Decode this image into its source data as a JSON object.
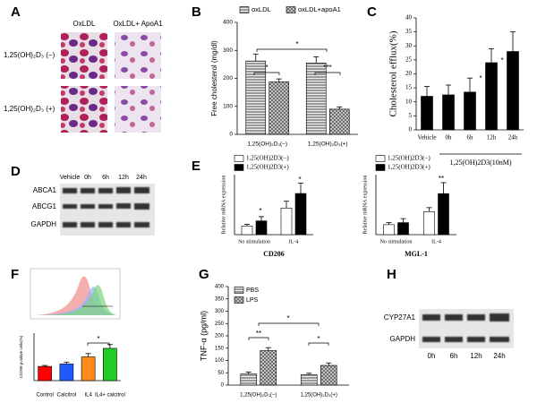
{
  "panel_labels": [
    "A",
    "B",
    "C",
    "D",
    "E",
    "F",
    "G",
    "H"
  ],
  "panel_a": {
    "columns": [
      "OxLDL",
      "OxLDL+ ApoA1"
    ],
    "rows": [
      "1,25(OH)₂D₃ (−)",
      "1,25(OH)₂D₃ (+)"
    ]
  },
  "panel_d": {
    "lanes": [
      "Vehicle",
      "0h",
      "6h",
      "12h",
      "24h"
    ],
    "bands": [
      "ABCA1",
      "ABCG1",
      "GAPDH"
    ]
  },
  "panel_h": {
    "lanes": [
      "0h",
      "6h",
      "12h",
      "24h"
    ],
    "bands": [
      "CYP27A1",
      "GAPDH"
    ]
  },
  "chart_data": [
    {
      "type": "bar",
      "ylabel": "Free cholesterol (mg/dl)",
      "categories": [
        "1,25(OH)₂D₃(−)",
        "1,25(OH)₂D₃(+)"
      ],
      "series": [
        {
          "name": "oxLDL",
          "color": "#b0b0b0",
          "hatch": "horizontal",
          "values": [
            262,
            255
          ],
          "errors": [
            25,
            22
          ]
        },
        {
          "name": "oxLDL+apoA1",
          "color": "#b0b0b0",
          "hatch": "cross",
          "values": [
            188,
            90
          ],
          "errors": [
            10,
            8
          ]
        }
      ],
      "ylim": [
        0,
        400
      ],
      "yticks": [
        0,
        100,
        200,
        300,
        400
      ],
      "annotations": [
        "*",
        "***",
        "*"
      ]
    },
    {
      "type": "bar",
      "ylabel": "Cholesterol efflux(%)",
      "xlabel": "1,25(OH)2D3(10nM)",
      "categories": [
        "Vehicle",
        "0h",
        "6h",
        "12h",
        "24h"
      ],
      "values": [
        12,
        12.5,
        13.5,
        24,
        28
      ],
      "errors": [
        3.5,
        3.5,
        5,
        5,
        7
      ],
      "color": "#000000",
      "ylim": [
        0,
        40
      ],
      "yticks": [
        0,
        5,
        10,
        15,
        20,
        25,
        30,
        35,
        40
      ],
      "annotations": [
        "*",
        "*"
      ]
    },
    {
      "type": "bar",
      "ylabel": "Relative mRNA expression",
      "xlabel": "CD206",
      "categories": [
        "No stimulation",
        "IL-4"
      ],
      "series": [
        {
          "name": "1,25(OH)2D3(−)",
          "color": "#ffffff",
          "values": [
            1.0,
            3.1
          ],
          "errors": [
            0.2,
            0.8
          ]
        },
        {
          "name": "1,25(OH)2D3(+)",
          "color": "#000000",
          "values": [
            1.6,
            4.8
          ],
          "errors": [
            0.5,
            1.2
          ]
        }
      ],
      "ylim": [
        0,
        7
      ],
      "annotations": [
        "*",
        "*"
      ]
    },
    {
      "type": "bar",
      "ylabel": "Relative mRNA expression",
      "xlabel": "MGL-1",
      "categories": [
        "No stimulation",
        "IL-4"
      ],
      "series": [
        {
          "name": "1,25(OH)2D3(−)",
          "color": "#ffffff",
          "values": [
            1.0,
            2.3
          ],
          "errors": [
            0.2,
            0.4
          ]
        },
        {
          "name": "1,25(OH)2D3(+)",
          "color": "#000000",
          "values": [
            1.2,
            4.1
          ],
          "errors": [
            0.4,
            1.1
          ]
        }
      ],
      "ylim": [
        0,
        6
      ],
      "annotations": [
        "**"
      ]
    },
    {
      "type": "bar",
      "ylabel": "CD206 positive cells(%)",
      "categories": [
        "Control",
        "Calcitrol",
        "IL4",
        "IL4+ calcitrol"
      ],
      "values": [
        30,
        35,
        50,
        68
      ],
      "errors": [
        2,
        4,
        7,
        8
      ],
      "colors": [
        "#ff0000",
        "#1e5aff",
        "#ff8c1a",
        "#22cc22"
      ],
      "ylim": [
        0,
        100
      ],
      "annotations": [
        "*"
      ]
    },
    {
      "type": "bar",
      "ylabel": "TNF-α (pg/ml)",
      "categories": [
        "1,25(OH)₂D₃(−)",
        "1,25(OH)₂D₃(+)"
      ],
      "series": [
        {
          "name": "PBS",
          "color": "#b0b0b0",
          "hatch": "horizontal",
          "values": [
            45,
            42
          ],
          "errors": [
            8,
            6
          ]
        },
        {
          "name": "LPS",
          "color": "#b0b0b0",
          "hatch": "cross",
          "values": [
            140,
            80
          ],
          "errors": [
            12,
            10
          ]
        }
      ],
      "ylim": [
        0,
        400
      ],
      "yticks": [
        0,
        50,
        100,
        150,
        200,
        250,
        300,
        350,
        400
      ],
      "annotations": [
        "**",
        "*",
        "*"
      ]
    }
  ]
}
